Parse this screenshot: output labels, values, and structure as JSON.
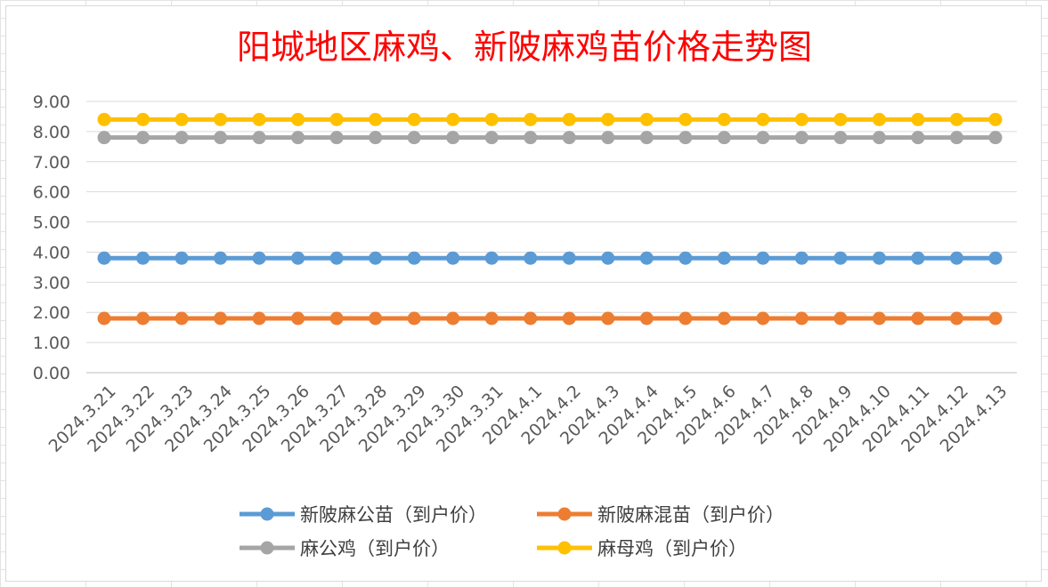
{
  "chart_data": {
    "type": "line",
    "title": "阳城地区麻鸡、新陂麻鸡苗价格走势图",
    "xlabel": "",
    "ylabel": "",
    "ylim": [
      0,
      9
    ],
    "yticks": [
      "0.00",
      "1.00",
      "2.00",
      "3.00",
      "4.00",
      "5.00",
      "6.00",
      "7.00",
      "8.00",
      "9.00"
    ],
    "grid": true,
    "legend_position": "bottom",
    "categories": [
      "2024.3.21",
      "2024.3.22",
      "2024.3.23",
      "2024.3.24",
      "2024.3.25",
      "2024.3.26",
      "2024.3.27",
      "2024.3.28",
      "2024.3.29",
      "2024.3.30",
      "2024.3.31",
      "2024.4.1",
      "2024.4.2",
      "2024.4.3",
      "2024.4.4",
      "2024.4.5",
      "2024.4.6",
      "2024.4.7",
      "2024.4.8",
      "2024.4.9",
      "2024.4.10",
      "2024.4.11",
      "2024.4.12",
      "2024.4.13"
    ],
    "series": [
      {
        "name": "新陂麻公苗（到户价）",
        "color": "#5b9bd5",
        "values": [
          3.8,
          3.8,
          3.8,
          3.8,
          3.8,
          3.8,
          3.8,
          3.8,
          3.8,
          3.8,
          3.8,
          3.8,
          3.8,
          3.8,
          3.8,
          3.8,
          3.8,
          3.8,
          3.8,
          3.8,
          3.8,
          3.8,
          3.8,
          3.8
        ]
      },
      {
        "name": "新陂麻混苗（到户价）",
        "color": "#ed7d31",
        "values": [
          1.8,
          1.8,
          1.8,
          1.8,
          1.8,
          1.8,
          1.8,
          1.8,
          1.8,
          1.8,
          1.8,
          1.8,
          1.8,
          1.8,
          1.8,
          1.8,
          1.8,
          1.8,
          1.8,
          1.8,
          1.8,
          1.8,
          1.8,
          1.8
        ]
      },
      {
        "name": "麻公鸡（到户价）",
        "color": "#a5a5a5",
        "values": [
          7.8,
          7.8,
          7.8,
          7.8,
          7.8,
          7.8,
          7.8,
          7.8,
          7.8,
          7.8,
          7.8,
          7.8,
          7.8,
          7.8,
          7.8,
          7.8,
          7.8,
          7.8,
          7.8,
          7.8,
          7.8,
          7.8,
          7.8,
          7.8
        ]
      },
      {
        "name": "麻母鸡（到户价）",
        "color": "#ffc000",
        "values": [
          8.4,
          8.4,
          8.4,
          8.4,
          8.4,
          8.4,
          8.4,
          8.4,
          8.4,
          8.4,
          8.4,
          8.4,
          8.4,
          8.4,
          8.4,
          8.4,
          8.4,
          8.4,
          8.4,
          8.4,
          8.4,
          8.4,
          8.4,
          8.4
        ]
      }
    ]
  }
}
